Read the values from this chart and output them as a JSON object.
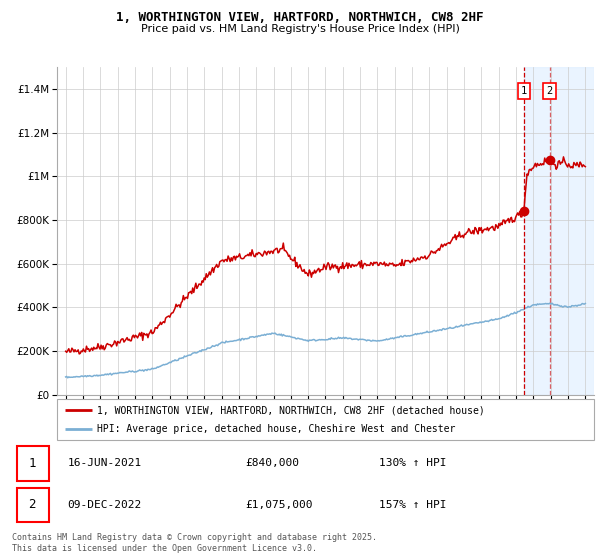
{
  "title_line1": "1, WORTHINGTON VIEW, HARTFORD, NORTHWICH, CW8 2HF",
  "title_line2": "Price paid vs. HM Land Registry's House Price Index (HPI)",
  "legend_label_red": "1, WORTHINGTON VIEW, HARTFORD, NORTHWICH, CW8 2HF (detached house)",
  "legend_label_blue": "HPI: Average price, detached house, Cheshire West and Chester",
  "annotation1_date": "16-JUN-2021",
  "annotation1_price": "£840,000",
  "annotation1_hpi": "130% ↑ HPI",
  "annotation2_date": "09-DEC-2022",
  "annotation2_price": "£1,075,000",
  "annotation2_hpi": "157% ↑ HPI",
  "footer": "Contains HM Land Registry data © Crown copyright and database right 2025.\nThis data is licensed under the Open Government Licence v3.0.",
  "color_red": "#cc0000",
  "color_blue": "#7bafd4",
  "color_vline": "#cc0000",
  "color_shade": "#ddeeff",
  "ylim": [
    0,
    1500000
  ],
  "ytick_values": [
    0,
    200000,
    400000,
    600000,
    800000,
    1000000,
    1200000,
    1400000
  ],
  "year_start": 1995,
  "year_end": 2025,
  "sale1_year": 2021.46,
  "sale1_value": 840000,
  "sale2_year": 2022.94,
  "sale2_value": 1075000
}
